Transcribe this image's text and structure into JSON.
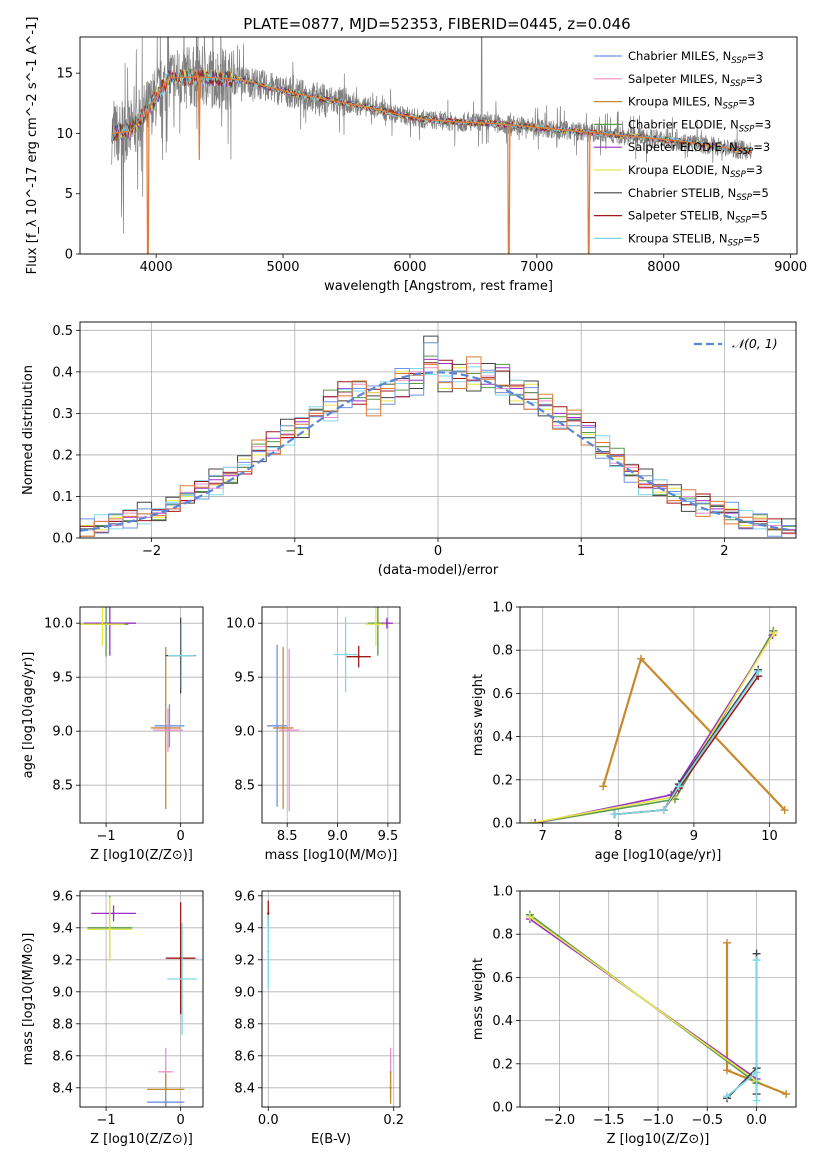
{
  "figure_title": "PLATE=0877, MJD=52353, FIBERID=0445, z=0.046",
  "colors": {
    "Chabrier MILES": "#6f93e8",
    "Salpeter MILES": "#ee8fc9",
    "Kroupa MILES": "#c8892d",
    "Chabrier ELODIE": "#5a9a4e",
    "Salpeter ELODIE": "#9b2fc7",
    "Kroupa ELODIE": "#e6e84a",
    "Chabrier STELIB": "#444444",
    "Salpeter STELIB": "#a01818",
    "Kroupa STELIB": "#7fd7e8",
    "data": "#7f7f7f",
    "model_main": "#e07a3a",
    "gauss": "#5b86d8"
  },
  "chart_data": [
    {
      "type": "line",
      "panel": "spectrum",
      "xlabel": "wavelength [Angstrom, rest frame]",
      "ylabel": "Flux [f_λ 10^-17 erg cm^-2 s^-1 A^-1]",
      "xlim": [
        3400,
        9050
      ],
      "ylim": [
        0,
        18
      ],
      "x_ticks": [
        4000,
        5000,
        6000,
        7000,
        8000,
        9000
      ],
      "y_ticks": [
        0,
        5,
        10,
        15
      ],
      "legend_position": "right",
      "legend": [
        {
          "label": "Chabrier MILES, N_SSP=3",
          "series": "Chabrier MILES"
        },
        {
          "label": "Salpeter MILES, N_SSP=3",
          "series": "Salpeter MILES"
        },
        {
          "label": "Kroupa MILES, N_SSP=3",
          "series": "Kroupa MILES"
        },
        {
          "label": "Chabrier ELODIE, N_SSP=3",
          "series": "Chabrier ELODIE"
        },
        {
          "label": "Salpeter ELODIE, N_SSP=3",
          "series": "Salpeter ELODIE"
        },
        {
          "label": "Kroupa ELODIE, N_SSP=3",
          "series": "Kroupa ELODIE"
        },
        {
          "label": "Chabrier STELIB, N_SSP=5",
          "series": "Chabrier STELIB"
        },
        {
          "label": "Salpeter STELIB, N_SSP=5",
          "series": "Salpeter STELIB"
        },
        {
          "label": "Kroupa STELIB, N_SSP=5",
          "series": "Kroupa STELIB"
        }
      ],
      "continuum": {
        "x": [
          3650,
          3800,
          3950,
          4100,
          4300,
          4500,
          4700,
          4900,
          5100,
          5300,
          5500,
          5700,
          5900,
          6100,
          6300,
          6500,
          6700,
          6900,
          7100,
          7300,
          7500,
          7700,
          7900,
          8100,
          8300,
          8500,
          8700
        ],
        "y": [
          10.0,
          10.2,
          12.2,
          14.6,
          14.7,
          14.6,
          14.4,
          13.8,
          13.3,
          12.9,
          12.5,
          12.1,
          11.6,
          11.2,
          11.0,
          10.9,
          10.8,
          10.6,
          10.4,
          10.2,
          10.0,
          9.8,
          9.6,
          9.4,
          9.1,
          8.8,
          8.5
        ]
      },
      "model_dips": [
        {
          "x": 3935,
          "y": 0
        },
        {
          "x": 4340,
          "y": 7.8
        },
        {
          "x": 6780,
          "y": 0
        },
        {
          "x": 7410,
          "y": 0
        }
      ],
      "data_spike": {
        "x": 6565,
        "y": 18
      }
    },
    {
      "type": "step",
      "panel": "residual_histogram",
      "xlabel": "(data-model)/error",
      "ylabel": "Normed distribution",
      "xlim": [
        -2.5,
        2.5
      ],
      "ylim": [
        0,
        0.52
      ],
      "x_ticks": [
        -2,
        -1,
        0,
        1,
        2
      ],
      "y_ticks": [
        0.0,
        0.1,
        0.2,
        0.3,
        0.4,
        0.5
      ],
      "legend": [
        {
          "label": "𝒩(0, 1)",
          "series": "gauss"
        }
      ],
      "legend_position": "upper right",
      "bin_edges": [
        -2.5,
        -2.4,
        -2.3,
        -2.2,
        -2.1,
        -2.0,
        -1.9,
        -1.8,
        -1.7,
        -1.6,
        -1.5,
        -1.4,
        -1.3,
        -1.2,
        -1.1,
        -1.0,
        -0.9,
        -0.8,
        -0.7,
        -0.6,
        -0.5,
        -0.4,
        -0.3,
        -0.2,
        -0.1,
        0.0,
        0.1,
        0.2,
        0.3,
        0.4,
        0.5,
        0.6,
        0.7,
        0.8,
        0.9,
        1.0,
        1.1,
        1.2,
        1.3,
        1.4,
        1.5,
        1.6,
        1.7,
        1.8,
        1.9,
        2.0,
        2.1,
        2.2,
        2.3,
        2.4,
        2.5
      ],
      "series_values": [
        [
          0.02,
          0.03,
          0.04,
          0.05,
          0.05,
          0.06,
          0.08,
          0.09,
          0.12,
          0.14,
          0.15,
          0.17,
          0.21,
          0.24,
          0.25,
          0.28,
          0.31,
          0.34,
          0.36,
          0.33,
          0.35,
          0.37,
          0.34,
          0.38,
          0.43,
          0.42,
          0.4,
          0.38,
          0.37,
          0.41,
          0.36,
          0.35,
          0.32,
          0.3,
          0.29,
          0.27,
          0.22,
          0.2,
          0.16,
          0.13,
          0.12,
          0.1,
          0.08,
          0.09,
          0.07,
          0.06,
          0.04,
          0.04,
          0.03,
          0.02
        ],
        [
          0.03,
          0.02,
          0.05,
          0.04,
          0.07,
          0.05,
          0.09,
          0.1,
          0.11,
          0.15,
          0.14,
          0.19,
          0.2,
          0.22,
          0.27,
          0.25,
          0.3,
          0.32,
          0.33,
          0.36,
          0.35,
          0.33,
          0.4,
          0.36,
          0.47,
          0.36,
          0.41,
          0.37,
          0.42,
          0.35,
          0.33,
          0.37,
          0.31,
          0.28,
          0.27,
          0.25,
          0.2,
          0.19,
          0.15,
          0.15,
          0.11,
          0.12,
          0.08,
          0.1,
          0.06,
          0.07,
          0.03,
          0.05,
          0.02,
          0.03
        ],
        [
          0.02,
          0.04,
          0.03,
          0.06,
          0.05,
          0.07,
          0.07,
          0.11,
          0.13,
          0.12,
          0.17,
          0.16,
          0.22,
          0.21,
          0.24,
          0.29,
          0.3,
          0.29,
          0.35,
          0.37,
          0.31,
          0.36,
          0.38,
          0.4,
          0.41,
          0.39,
          0.36,
          0.42,
          0.39,
          0.36,
          0.38,
          0.31,
          0.33,
          0.27,
          0.3,
          0.24,
          0.23,
          0.18,
          0.17,
          0.12,
          0.14,
          0.09,
          0.1,
          0.06,
          0.08,
          0.05,
          0.05,
          0.03,
          0.03,
          0.01
        ]
      ],
      "gaussian": {
        "mean": 0,
        "std": 1
      }
    },
    {
      "type": "scatter",
      "panel": "age_vs_Z",
      "xlabel": "Z [log10(Z/Z⊙)]",
      "ylabel": "age [log10(age/yr)]",
      "xlim": [
        -1.35,
        0.3
      ],
      "ylim": [
        8.15,
        10.15
      ],
      "x_ticks": [
        -1,
        0
      ],
      "y_ticks": [
        8.5,
        9.0,
        9.5,
        10.0
      ],
      "points": [
        {
          "x": -0.95,
          "y": 10.0,
          "xerr": 0.35,
          "yerr": 0.3,
          "series": "Salpeter ELODIE"
        },
        {
          "x": -1.0,
          "y": 9.99,
          "xerr": 0.3,
          "yerr": 0.3,
          "series": "Chabrier ELODIE"
        },
        {
          "x": -1.05,
          "y": 9.99,
          "xerr": 0.3,
          "yerr": 0.2,
          "series": "Kroupa ELODIE"
        },
        {
          "x": -0.2,
          "y": 9.03,
          "xerr": 0.2,
          "yerr": 0.75,
          "series": "Kroupa MILES"
        },
        {
          "x": -0.15,
          "y": 9.05,
          "xerr": 0.2,
          "yerr": 0.2,
          "series": "Chabrier MILES"
        },
        {
          "x": -0.17,
          "y": 9.01,
          "xerr": 0.2,
          "yerr": 0.2,
          "series": "Salpeter MILES"
        },
        {
          "x": 0.0,
          "y": 9.7,
          "xerr": 0.2,
          "yerr": 0.35,
          "series": "Chabrier STELIB"
        },
        {
          "x": 0.01,
          "y": 9.7,
          "xerr": 0.18,
          "yerr": 0.3,
          "series": "Kroupa STELIB"
        }
      ]
    },
    {
      "type": "scatter",
      "panel": "age_vs_mass",
      "xlabel": "mass [log10(M/M⊙)]",
      "ylabel": "",
      "xlim": [
        8.25,
        9.62
      ],
      "ylim": [
        8.15,
        10.15
      ],
      "x_ticks": [
        8.5,
        9.0,
        9.5
      ],
      "y_ticks": [
        8.5,
        9.0,
        9.5,
        10.0
      ],
      "points": [
        {
          "x": 8.4,
          "y": 9.05,
          "xerr": 0.1,
          "yerr": 0.75,
          "series": "Chabrier MILES"
        },
        {
          "x": 8.46,
          "y": 9.03,
          "xerr": 0.1,
          "yerr": 0.75,
          "series": "Kroupa MILES"
        },
        {
          "x": 8.52,
          "y": 9.01,
          "xerr": 0.1,
          "yerr": 0.75,
          "series": "Salpeter MILES"
        },
        {
          "x": 9.4,
          "y": 10.0,
          "xerr": 0.1,
          "yerr": 0.3,
          "series": "Chabrier ELODIE"
        },
        {
          "x": 9.49,
          "y": 10.0,
          "xerr": 0.06,
          "yerr": 0.05,
          "series": "Salpeter ELODIE"
        },
        {
          "x": 9.38,
          "y": 9.99,
          "xerr": 0.1,
          "yerr": 0.2,
          "series": "Kroupa ELODIE"
        },
        {
          "x": 9.21,
          "y": 9.69,
          "xerr": 0.12,
          "yerr": 0.1,
          "series": "Salpeter STELIB"
        },
        {
          "x": 9.08,
          "y": 9.71,
          "xerr": 0.12,
          "yerr": 0.35,
          "series": "Kroupa STELIB"
        }
      ]
    },
    {
      "type": "line",
      "panel": "mass_weight_vs_age",
      "xlabel": "age [log10(age/yr)]",
      "ylabel": "mass weight",
      "xlim": [
        6.7,
        10.35
      ],
      "ylim": [
        0,
        1.0
      ],
      "x_ticks": [
        7,
        8,
        9,
        10
      ],
      "y_ticks": [
        0.0,
        0.2,
        0.4,
        0.6,
        0.8,
        1.0
      ],
      "series": [
        {
          "series": "Kroupa MILES",
          "x": [
            7.8,
            8.3,
            10.2
          ],
          "y": [
            0.17,
            0.76,
            0.06
          ]
        },
        {
          "series": "Chabrier ELODIE",
          "x": [
            6.9,
            8.75,
            10.05
          ],
          "y": [
            0.0,
            0.11,
            0.89
          ]
        },
        {
          "series": "Salpeter ELODIE",
          "x": [
            6.9,
            8.7,
            10.04
          ],
          "y": [
            0.0,
            0.13,
            0.87
          ]
        },
        {
          "series": "Kroupa ELODIE",
          "x": [
            6.85,
            8.72,
            10.06
          ],
          "y": [
            0.0,
            0.12,
            0.88
          ]
        },
        {
          "series": "Chabrier STELIB",
          "x": [
            7.95,
            8.6,
            8.8,
            9.85
          ],
          "y": [
            0.04,
            0.06,
            0.18,
            0.71
          ]
        },
        {
          "series": "Salpeter STELIB",
          "x": [
            7.95,
            8.6,
            8.8,
            9.85
          ],
          "y": [
            0.04,
            0.06,
            0.16,
            0.68
          ]
        },
        {
          "series": "Kroupa STELIB",
          "x": [
            7.95,
            8.6,
            8.8,
            9.85
          ],
          "y": [
            0.04,
            0.06,
            0.17,
            0.7
          ]
        }
      ]
    },
    {
      "type": "scatter",
      "panel": "mass_vs_Z",
      "xlabel": "Z [log10(Z/Z⊙)]",
      "ylabel": "mass [log10(M/M⊙)]",
      "xlim": [
        -1.35,
        0.3
      ],
      "ylim": [
        8.28,
        9.63
      ],
      "x_ticks": [
        -1,
        0
      ],
      "y_ticks": [
        8.4,
        8.6,
        8.8,
        9.0,
        9.2,
        9.4,
        9.6
      ],
      "points": [
        {
          "x": -0.9,
          "y": 9.49,
          "xerr": 0.3,
          "yerr": 0.05,
          "series": "Salpeter ELODIE"
        },
        {
          "x": -0.95,
          "y": 9.4,
          "xerr": 0.3,
          "yerr": 0.2,
          "series": "Chabrier ELODIE"
        },
        {
          "x": -0.95,
          "y": 9.39,
          "xerr": 0.3,
          "yerr": 0.2,
          "series": "Kroupa ELODIE"
        },
        {
          "x": 0.0,
          "y": 9.21,
          "xerr": 0.2,
          "yerr": 0.35,
          "series": "Salpeter STELIB"
        },
        {
          "x": 0.02,
          "y": 9.08,
          "xerr": 0.2,
          "yerr": 0.35,
          "series": "Kroupa STELIB"
        },
        {
          "x": -0.2,
          "y": 8.5,
          "xerr": 0.1,
          "yerr": 0.15,
          "series": "Salpeter MILES"
        },
        {
          "x": -0.2,
          "y": 8.39,
          "xerr": 0.25,
          "yerr": 0.1,
          "series": "Kroupa MILES"
        },
        {
          "x": -0.2,
          "y": 8.31,
          "xerr": 0.25,
          "yerr": 0.05,
          "series": "Chabrier MILES"
        }
      ]
    },
    {
      "type": "scatter",
      "panel": "mass_vs_EBV",
      "xlabel": "E(B-V)",
      "ylabel": "",
      "xlim": [
        -0.01,
        0.21
      ],
      "ylim": [
        8.28,
        9.63
      ],
      "x_ticks": [
        0.0,
        0.2
      ],
      "y_ticks": [
        8.4,
        8.6,
        8.8,
        9.0,
        9.2,
        9.4,
        9.6
      ],
      "points": [
        {
          "x": 0.0,
          "y": 9.49,
          "yerr": 0.08,
          "series": "Salpeter STELIB"
        },
        {
          "x": 0.0,
          "y": 9.25,
          "yerr": 0.23,
          "series": "Kroupa STELIB"
        },
        {
          "x": 0.195,
          "y": 8.5,
          "yerr": 0.15,
          "series": "Salpeter MILES"
        },
        {
          "x": 0.195,
          "y": 8.4,
          "yerr": 0.1,
          "series": "Kroupa MILES"
        }
      ]
    },
    {
      "type": "line",
      "panel": "mass_weight_vs_Z",
      "xlabel": "Z [log10(Z/Z⊙)]",
      "ylabel": "mass weight",
      "xlim": [
        -2.4,
        0.4
      ],
      "ylim": [
        0,
        1.0
      ],
      "x_ticks": [
        -2.0,
        -1.5,
        -1.0,
        -0.5,
        0.0
      ],
      "y_ticks": [
        0.0,
        0.2,
        0.4,
        0.6,
        0.8,
        1.0
      ],
      "series": [
        {
          "series": "Kroupa MILES",
          "x": [
            -0.3,
            -0.3,
            0.3
          ],
          "y": [
            0.76,
            0.17,
            0.06
          ]
        },
        {
          "series": "Chabrier ELODIE",
          "x": [
            -2.3,
            0.0
          ],
          "y": [
            0.89,
            0.11
          ]
        },
        {
          "series": "Salpeter ELODIE",
          "x": [
            -2.3,
            0.0
          ],
          "y": [
            0.87,
            0.13
          ]
        },
        {
          "series": "Kroupa ELODIE",
          "x": [
            -2.3,
            0.0
          ],
          "y": [
            0.88,
            0.12
          ]
        },
        {
          "series": "Chabrier STELIB",
          "x": [
            -0.3,
            0.0,
            0.0,
            0.0
          ],
          "y": [
            0.04,
            0.18,
            0.71,
            0.06
          ]
        },
        {
          "series": "Kroupa STELIB",
          "x": [
            -0.3,
            0.0,
            0.0,
            0.0
          ],
          "y": [
            0.05,
            0.16,
            0.68,
            0.03
          ]
        }
      ]
    }
  ]
}
